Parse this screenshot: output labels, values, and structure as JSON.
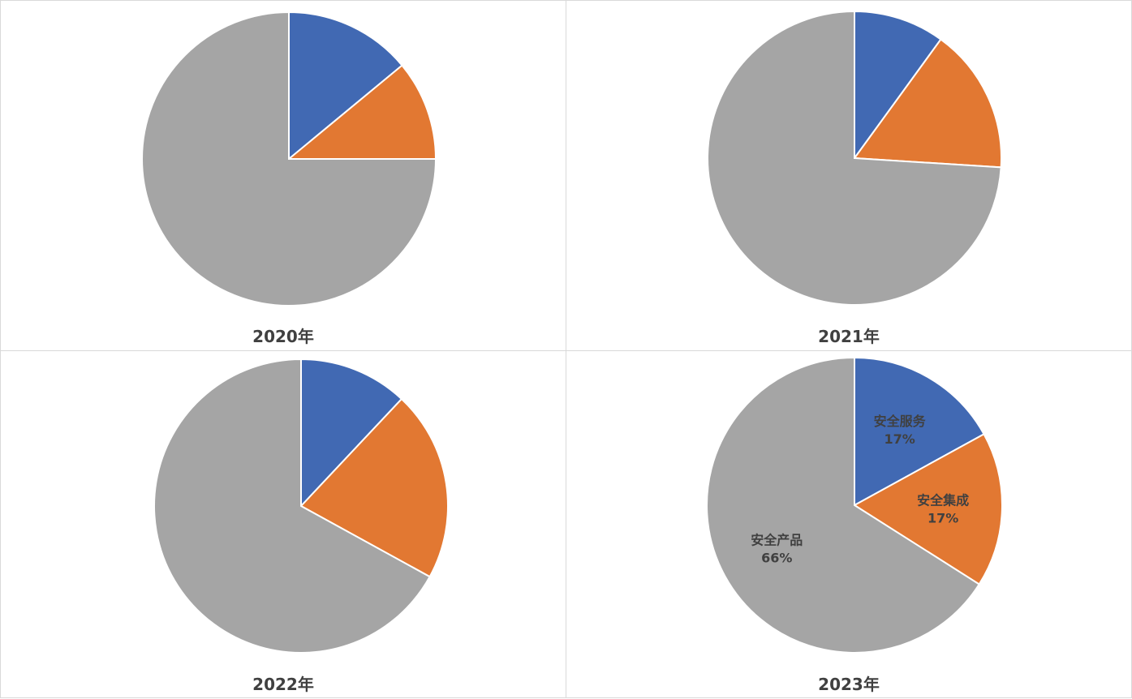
{
  "colors": {
    "安全服务": "#4169B3",
    "安全集成": "#E27832",
    "安全产品": "#A5A5A5"
  },
  "chart_data": [
    {
      "type": "pie",
      "title": "2020年",
      "categories": [
        "安全服务",
        "安全集成",
        "安全产品"
      ],
      "values": [
        0.14,
        0.11,
        0.75
      ],
      "show_labels": false
    },
    {
      "type": "pie",
      "title": "2021年",
      "categories": [
        "安全服务",
        "安全集成",
        "安全产品"
      ],
      "values": [
        0.1,
        0.16,
        0.74
      ],
      "show_labels": false
    },
    {
      "type": "pie",
      "title": "2022年",
      "categories": [
        "安全服务",
        "安全集成",
        "安全产品"
      ],
      "values": [
        0.12,
        0.21,
        0.67
      ],
      "show_labels": false
    },
    {
      "type": "pie",
      "title": "2023年",
      "categories": [
        "安全服务",
        "安全集成",
        "安全产品"
      ],
      "values": [
        0.17,
        0.17,
        0.66
      ],
      "percent_labels": [
        "17%",
        "17%",
        "66%"
      ],
      "show_labels": true
    }
  ]
}
